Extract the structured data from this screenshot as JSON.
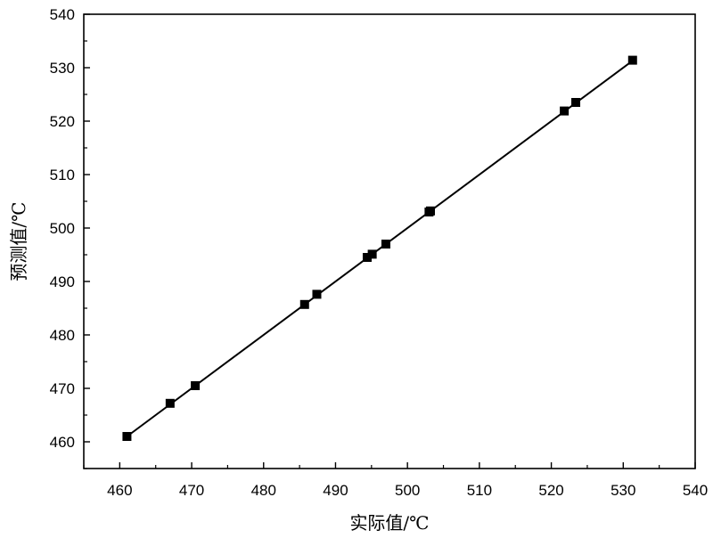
{
  "chart_data": {
    "type": "scatter",
    "xlabel": "实际值/℃",
    "ylabel": "预测值/℃",
    "xlim": [
      455,
      540
    ],
    "ylim": [
      455,
      540
    ],
    "xticks": [
      460,
      470,
      480,
      490,
      500,
      510,
      520,
      530,
      540
    ],
    "yticks": [
      460,
      470,
      480,
      490,
      500,
      510,
      520,
      530,
      540
    ],
    "tick_labels_x": [
      "460",
      "470",
      "480",
      "490",
      "500",
      "510",
      "520",
      "530",
      "540"
    ],
    "tick_labels_y": [
      "460",
      "470",
      "480",
      "490",
      "500",
      "510",
      "520",
      "530",
      "540"
    ],
    "grid": false,
    "marker": "square",
    "series": [
      {
        "points": [
          {
            "x": 461.0,
            "y": 461.0
          },
          {
            "x": 467.0,
            "y": 467.2
          },
          {
            "x": 470.5,
            "y": 470.5
          },
          {
            "x": 485.7,
            "y": 485.7
          },
          {
            "x": 487.4,
            "y": 487.6
          },
          {
            "x": 494.4,
            "y": 494.5
          },
          {
            "x": 495.1,
            "y": 495.1
          },
          {
            "x": 497.0,
            "y": 497.0
          },
          {
            "x": 503.0,
            "y": 503.0
          },
          {
            "x": 503.2,
            "y": 503.2
          },
          {
            "x": 521.8,
            "y": 521.9
          },
          {
            "x": 523.4,
            "y": 523.5
          },
          {
            "x": 531.3,
            "y": 531.4
          }
        ]
      }
    ],
    "fit_line": {
      "x": [
        461.0,
        531.3
      ],
      "y": [
        461.0,
        531.3
      ]
    },
    "colors": {
      "line": "#000000",
      "marker": "#000000",
      "axes": "#000000",
      "background": "#ffffff"
    }
  }
}
